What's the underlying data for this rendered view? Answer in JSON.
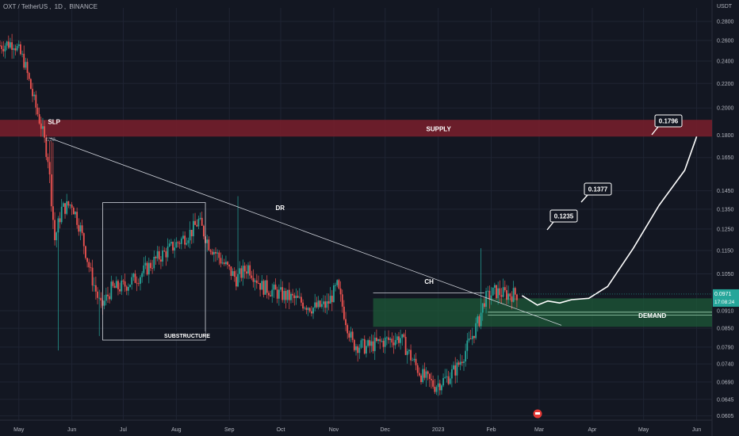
{
  "header": {
    "symbol": "OXT / TetherUS",
    "interval": "1D",
    "exchange": "BINANCE"
  },
  "price_axis": {
    "unit": "USDT"
  },
  "colors": {
    "background": "#131722",
    "up": "#26a69a",
    "down": "#ef5350",
    "supply_zone": "#7a1e2b",
    "demand_zone": "#1e5a38",
    "current_price_tag": "#26a69a",
    "text": "#b2b5be"
  },
  "current_price": {
    "value": "0.0971",
    "countdown": "17:08:24"
  },
  "annotations": {
    "supply": "SUPPLY",
    "demand": "DEMAND",
    "slp": "SLP",
    "dr": "DR",
    "ch": "CH",
    "substructure": "SUBSTRUCTURE",
    "targets": [
      "0.1235",
      "0.1377",
      "0.1796"
    ]
  },
  "chart_data": {
    "type": "candlestick",
    "title": "OXT / TetherUS, 1D, BINANCE",
    "scale": "log",
    "ylim": [
      0.0595,
      0.295
    ],
    "y_ticks": [
      "0.2800",
      "0.2600",
      "0.2400",
      "0.2200",
      "0.2000",
      "0.1800",
      "0.1650",
      "0.1450",
      "0.1350",
      "0.1250",
      "0.1150",
      "0.1050",
      "0.0910",
      "0.0850",
      "0.0790",
      "0.0740",
      "0.0690",
      "0.0645",
      "0.0605"
    ],
    "x_ticks": [
      "May",
      "Jun",
      "Jul",
      "Aug",
      "Sep",
      "Oct",
      "Nov",
      "Dec",
      "2023",
      "Feb",
      "Mar",
      "Apr",
      "May",
      "Jun"
    ],
    "x_range": [
      "2022-04-20",
      "2023-06-10"
    ],
    "series_path": [
      [
        "2022-04-20",
        0.255
      ],
      [
        "2022-04-28",
        0.258
      ],
      [
        "2022-05-04",
        0.24
      ],
      [
        "2022-05-10",
        0.205
      ],
      [
        "2022-05-14",
        0.187
      ],
      [
        "2022-05-18",
        0.165
      ],
      [
        "2022-05-22",
        0.12
      ],
      [
        "2022-05-26",
        0.135
      ],
      [
        "2022-06-01",
        0.138
      ],
      [
        "2022-06-06",
        0.125
      ],
      [
        "2022-06-12",
        0.105
      ],
      [
        "2022-06-18",
        0.092
      ],
      [
        "2022-06-24",
        0.099
      ],
      [
        "2022-07-01",
        0.1
      ],
      [
        "2022-07-10",
        0.104
      ],
      [
        "2022-07-20",
        0.111
      ],
      [
        "2022-08-01",
        0.118
      ],
      [
        "2022-08-10",
        0.124
      ],
      [
        "2022-08-14",
        0.129
      ],
      [
        "2022-08-20",
        0.118
      ],
      [
        "2022-08-28",
        0.11
      ],
      [
        "2022-09-05",
        0.103
      ],
      [
        "2022-09-12",
        0.108
      ],
      [
        "2022-09-20",
        0.1
      ],
      [
        "2022-10-01",
        0.097
      ],
      [
        "2022-10-10",
        0.095
      ],
      [
        "2022-10-20",
        0.092
      ],
      [
        "2022-10-28",
        0.093
      ],
      [
        "2022-11-03",
        0.1
      ],
      [
        "2022-11-08",
        0.088
      ],
      [
        "2022-11-12",
        0.08
      ],
      [
        "2022-11-20",
        0.079
      ],
      [
        "2022-12-01",
        0.081
      ],
      [
        "2022-12-10",
        0.082
      ],
      [
        "2022-12-16",
        0.076
      ],
      [
        "2022-12-22",
        0.071
      ],
      [
        "2022-12-30",
        0.068
      ],
      [
        "2023-01-06",
        0.07
      ],
      [
        "2023-01-12",
        0.073
      ],
      [
        "2023-01-18",
        0.079
      ],
      [
        "2023-01-22",
        0.084
      ],
      [
        "2023-01-25",
        0.088
      ],
      [
        "2023-01-28",
        0.095
      ],
      [
        "2023-02-03",
        0.098
      ],
      [
        "2023-02-10",
        0.097
      ],
      [
        "2023-02-16",
        0.0971
      ]
    ],
    "events": [
      {
        "date": "2022-05-19",
        "label": "SLP",
        "value": 0.176
      },
      {
        "date": "2022-11-25",
        "label": "CH",
        "value": 0.0975
      }
    ],
    "zones": [
      {
        "label": "SUPPLY",
        "from": 0.179,
        "to": 0.191,
        "start": "2022-04-20",
        "end": "2023-06-10"
      },
      {
        "label": "DEMAND",
        "from": 0.0855,
        "to": 0.0955,
        "start": "2022-11-24",
        "end": "2023-06-10"
      }
    ],
    "projection": [
      [
        "2023-02-19",
        0.0965
      ],
      [
        "2023-02-28",
        0.093
      ],
      [
        "2023-03-06",
        0.0945
      ],
      [
        "2023-03-13",
        0.0938
      ],
      [
        "2023-03-20",
        0.095
      ],
      [
        "2023-03-30",
        0.0955
      ],
      [
        "2023-04-10",
        0.1
      ],
      [
        "2023-04-25",
        0.116
      ],
      [
        "2023-05-10",
        0.137
      ],
      [
        "2023-05-25",
        0.157
      ],
      [
        "2023-06-01",
        0.179
      ]
    ],
    "trendline": [
      [
        "2022-05-19",
        0.178
      ],
      [
        "2023-03-14",
        0.086
      ]
    ]
  }
}
